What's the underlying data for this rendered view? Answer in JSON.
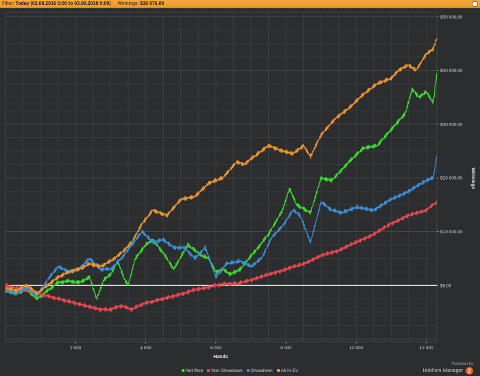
{
  "filter": {
    "label": "Filter:",
    "date_range": "Today (02.08.2018 0:00 to 03.08.2018 0:00)",
    "winnings_label": "Winnings:",
    "winnings_value": "$38 876,00",
    "collapse_icon": "chevron-up-icon"
  },
  "branding": {
    "powered_by": "Powered by",
    "name": "Hold'em Manager",
    "badge": "2"
  },
  "chart_data": {
    "type": "line",
    "xlabel": "Hands",
    "ylabel": "Winnings",
    "xlim": [
      0,
      12300
    ],
    "ylim": [
      -10500,
      50800
    ],
    "x_ticks": [
      2000,
      4000,
      6000,
      8000,
      10000,
      12000
    ],
    "x_tick_labels": [
      "2 000",
      "4 000",
      "6 000",
      "8 000",
      "10 000",
      "12 000"
    ],
    "y_ticks": [
      0,
      10000,
      20000,
      30000,
      40000,
      50000
    ],
    "y_tick_labels": [
      "$0,00",
      "$10 000,00",
      "$20 000,00",
      "$30 000,00",
      "$40 000,00",
      "$50 000,00"
    ],
    "grid": true,
    "legend_position": "bottom",
    "zero_line_color": "#ffffff",
    "background": "#2b2d2f",
    "series": [
      {
        "name": "Net Won",
        "color": "#3ddc2e",
        "x": [
          0,
          300,
          600,
          900,
          1200,
          1500,
          1800,
          2100,
          2400,
          2600,
          2800,
          3000,
          3200,
          3400,
          3500,
          3700,
          4000,
          4200,
          4500,
          4800,
          5200,
          5600,
          5800,
          6000,
          6200,
          6400,
          6700,
          7000,
          7200,
          7500,
          7900,
          8100,
          8300,
          8700,
          9000,
          9300,
          9800,
          10200,
          10600,
          11000,
          11400,
          11600,
          11800,
          12000,
          12200,
          12300
        ],
        "y": [
          -1000,
          -1500,
          -800,
          -2500,
          -1000,
          500,
          800,
          500,
          1500,
          -2500,
          1000,
          2000,
          4500,
          1000,
          0,
          5000,
          7500,
          8500,
          6000,
          3000,
          7500,
          5500,
          5000,
          2500,
          3000,
          2000,
          3000,
          5500,
          7000,
          9500,
          14000,
          18000,
          15000,
          13500,
          20000,
          19500,
          23000,
          25500,
          26000,
          29000,
          32000,
          36500,
          35000,
          36000,
          34000,
          39500
        ]
      },
      {
        "name": "Non Showdown",
        "color": "#e8474d",
        "x": [
          0,
          300,
          600,
          900,
          1200,
          1500,
          1800,
          2100,
          2400,
          2700,
          3000,
          3300,
          3600,
          3900,
          4200,
          4500,
          4800,
          5100,
          5400,
          5700,
          6000,
          6300,
          6600,
          7000,
          7500,
          8000,
          8500,
          9000,
          9500,
          10000,
          10500,
          11000,
          11500,
          12000,
          12300
        ],
        "y": [
          0,
          -500,
          -1000,
          -1500,
          -2000,
          -2500,
          -3000,
          -3500,
          -4000,
          -4500,
          -4500,
          -3800,
          -4500,
          -3500,
          -3000,
          -2500,
          -2000,
          -1500,
          -800,
          -500,
          0,
          300,
          300,
          1000,
          2000,
          3000,
          4000,
          5500,
          6500,
          8000,
          9500,
          11500,
          13000,
          14000,
          15500
        ]
      },
      {
        "name": "Showdown",
        "color": "#3a8fd8",
        "x": [
          0,
          300,
          600,
          900,
          1200,
          1500,
          1800,
          2100,
          2400,
          2700,
          3000,
          3300,
          3600,
          3900,
          4200,
          4500,
          4800,
          5100,
          5400,
          5700,
          6000,
          6300,
          6700,
          7000,
          7300,
          7600,
          7900,
          8200,
          8400,
          8700,
          9000,
          9300,
          9600,
          10000,
          10500,
          11000,
          11500,
          12000,
          12200,
          12300
        ],
        "y": [
          -1000,
          -1500,
          -500,
          -2000,
          1000,
          3500,
          2500,
          3000,
          5000,
          3000,
          3000,
          5000,
          7500,
          10000,
          8000,
          8500,
          7000,
          7000,
          5000,
          7000,
          1500,
          4000,
          4500,
          3500,
          5000,
          9000,
          11000,
          14000,
          13000,
          8000,
          15500,
          14000,
          13500,
          14500,
          14000,
          16000,
          17500,
          19500,
          20000,
          24000
        ]
      },
      {
        "name": "All-In EV",
        "color": "#f0942e",
        "x": [
          0,
          300,
          600,
          900,
          1200,
          1500,
          1800,
          2100,
          2400,
          2700,
          3000,
          3300,
          3600,
          3900,
          4200,
          4600,
          5000,
          5400,
          5800,
          6200,
          6600,
          6800,
          7100,
          7500,
          7900,
          8200,
          8500,
          8700,
          9000,
          9400,
          9800,
          10200,
          10600,
          11000,
          11200,
          11500,
          11700,
          12000,
          12200,
          12300
        ],
        "y": [
          -500,
          -1000,
          0,
          -1500,
          0,
          1500,
          2500,
          3000,
          4000,
          3500,
          4500,
          6000,
          8000,
          11500,
          14000,
          13000,
          16000,
          16500,
          19000,
          20000,
          23000,
          22500,
          24000,
          26000,
          25000,
          24500,
          26000,
          24000,
          28000,
          31000,
          33000,
          35500,
          37500,
          38500,
          40000,
          41000,
          40000,
          43000,
          44000,
          46000
        ]
      }
    ]
  }
}
